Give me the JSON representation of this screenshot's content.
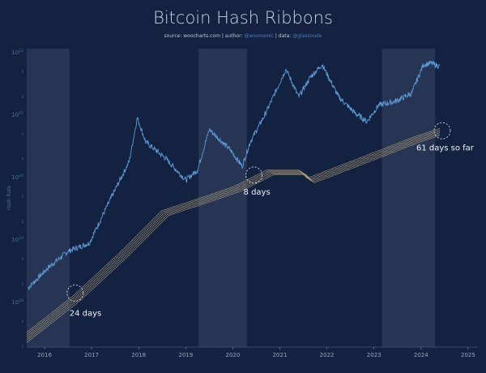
{
  "title": "Bitcoin Hash Ribbons",
  "subtitle": {
    "source_label": "source: ",
    "source": "woocharts.com",
    "sep1": " | author: ",
    "author": "@woonomic",
    "sep2": " | data: ",
    "data": "@glassnode"
  },
  "colors": {
    "background": "#142241",
    "price": "#5b9bd5",
    "ribbon": "#c8b27a",
    "shade": "#2a3858"
  },
  "chart_data": {
    "type": "line",
    "title": "Bitcoin Hash Ribbons",
    "ylabel": "Hash Rate",
    "yscale": "log",
    "ylim_log10": [
      17.3,
      22.1
    ],
    "xlim": [
      2015.62,
      2025.2
    ],
    "y_ticks": [
      {
        "log": 22,
        "label": "10",
        "exp": "22"
      },
      {
        "log": 21,
        "label": "10",
        "exp": "21"
      },
      {
        "log": 20,
        "label": "10",
        "exp": "20"
      },
      {
        "log": 19,
        "label": "10",
        "exp": "19"
      },
      {
        "log": 18,
        "label": "10",
        "exp": "18"
      }
    ],
    "x_ticks": [
      "2016",
      "2017",
      "2018",
      "2019",
      "2020",
      "2021",
      "2022",
      "2023",
      "2024",
      "2025"
    ],
    "capitulation_periods": [
      [
        2015.62,
        2016.53
      ],
      [
        2019.27,
        2020.3
      ],
      [
        2023.17,
        2024.3
      ]
    ],
    "price_series": {
      "x": [
        2015.65,
        2016.08,
        2016.5,
        2016.95,
        2017.45,
        2017.8,
        2017.97,
        2018.15,
        2018.57,
        2019.0,
        2019.25,
        2019.5,
        2019.95,
        2020.2,
        2020.37,
        2020.7,
        2021.13,
        2021.4,
        2021.65,
        2021.9,
        2022.25,
        2022.6,
        2022.85,
        2023.1,
        2023.45,
        2023.8,
        2024.05,
        2024.22,
        2024.4
      ],
      "log10_values": [
        18.23,
        18.56,
        18.82,
        18.95,
        19.73,
        20.26,
        20.96,
        20.57,
        20.31,
        19.96,
        20.12,
        20.77,
        20.44,
        20.18,
        20.57,
        21.03,
        21.74,
        21.29,
        21.61,
        21.81,
        21.29,
        21.03,
        20.9,
        21.16,
        21.22,
        21.35,
        21.81,
        21.83,
        21.78
      ]
    },
    "hash_ribbon": {
      "x": [
        2015.62,
        2016.6,
        2017.63,
        2018.49,
        2019.26,
        2020.03,
        2020.72,
        2021.41,
        2021.58,
        2022.27,
        2023.13,
        2023.81,
        2024.41
      ],
      "log10_values": [
        17.52,
        18.1,
        18.82,
        19.47,
        19.66,
        19.86,
        20.12,
        20.12,
        19.99,
        20.19,
        20.44,
        20.64,
        20.79
      ]
    },
    "annotations": [
      {
        "text": "24 days",
        "x": 2016.65,
        "log10": 18.15
      },
      {
        "text": "8 days",
        "x": 2020.45,
        "log10": 20.04
      },
      {
        "text": "61 days so far",
        "x": 2024.45,
        "log10": 20.75
      }
    ]
  }
}
